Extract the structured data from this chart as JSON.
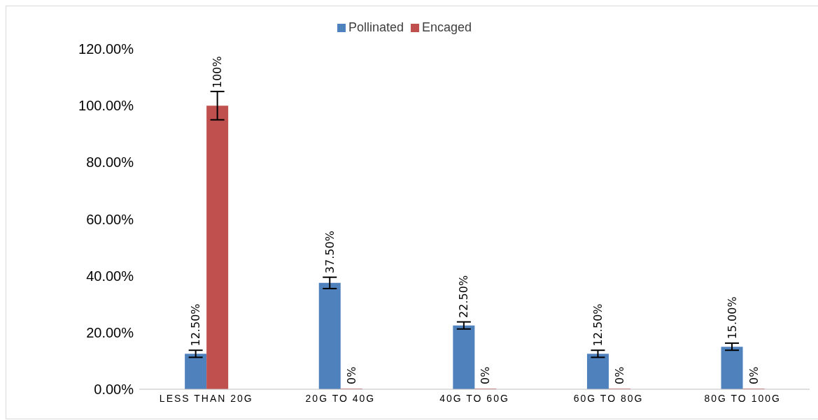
{
  "chart_data": {
    "type": "bar",
    "categories": [
      "LESS THAN 20G",
      "20G TO 40G",
      "40G TO 60G",
      "60G TO 80G",
      "80G TO 100G"
    ],
    "series": [
      {
        "name": "Pollinated",
        "color": "#4f81bd",
        "values": [
          12.5,
          37.5,
          22.5,
          12.5,
          15
        ],
        "errors": [
          1.25,
          2,
          1.25,
          1.25,
          1.25
        ],
        "value_labels": [
          "12.50%",
          "37.50%",
          "22.50%",
          "12.50%",
          "15.00%"
        ]
      },
      {
        "name": "Encaged",
        "color": "#c0504d",
        "values": [
          100,
          0,
          0,
          0,
          0
        ],
        "errors": [
          5,
          null,
          null,
          null,
          null
        ],
        "value_labels": [
          "100%",
          "0%",
          "0%",
          "0%",
          "0%"
        ]
      }
    ],
    "ylim": [
      0,
      120
    ],
    "yticks": [
      {
        "value": 0,
        "label": "0.00%"
      },
      {
        "value": 20,
        "label": "20.00%"
      },
      {
        "value": 40,
        "label": "40.00%"
      },
      {
        "value": 60,
        "label": "60.00%"
      },
      {
        "value": 80,
        "label": "80.00%"
      },
      {
        "value": 100,
        "label": "100.00%"
      },
      {
        "value": 120,
        "label": "120.00%"
      }
    ],
    "grid": false,
    "legend": "top"
  }
}
